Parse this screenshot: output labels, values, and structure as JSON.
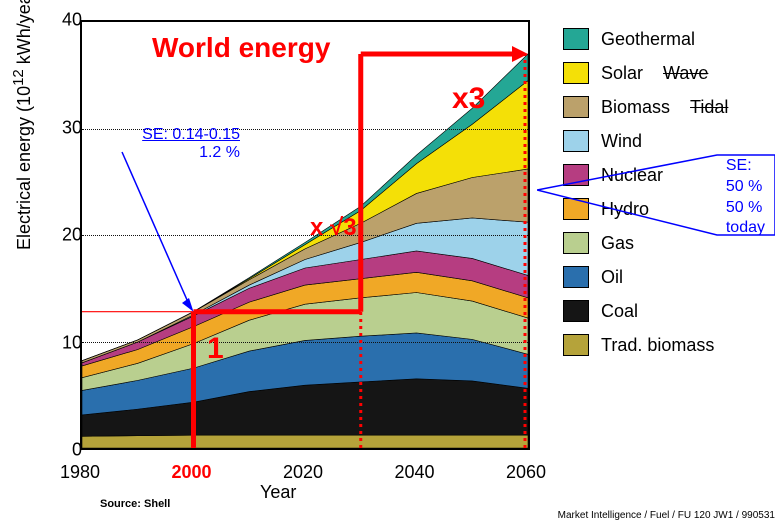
{
  "chart": {
    "type": "stacked-area",
    "title_annotation": "World energy",
    "xlabel": "Year",
    "ylabel": "Electrical energy  (10",
    "ylabel_sup": "12",
    "ylabel_tail": " kWh/year)",
    "xlim": [
      1980,
      2060
    ],
    "ylim": [
      0,
      40
    ],
    "xtick_step": 20,
    "ytick_step": 10,
    "x_highlight": 2000,
    "grid": true,
    "grid_color": "#111111",
    "background_color": "#ffffff",
    "label_fontsize": 18,
    "tick_fontsize": 18,
    "title_fontsize": 28,
    "title_color": "#ff0000",
    "source": "Source: Shell",
    "footer": "Market Intelligence / Fuel / FU 120 JW1 / 990531",
    "x_points": [
      1980,
      1990,
      2000,
      2010,
      2020,
      2030,
      2040,
      2050,
      2060
    ],
    "series": [
      {
        "name": "Trad. biomass",
        "color": "#b5a33a",
        "values": [
          1.1,
          1.15,
          1.2,
          1.2,
          1.2,
          1.2,
          1.2,
          1.2,
          1.2
        ]
      },
      {
        "name": "Coal",
        "color": "#151515",
        "values": [
          2.0,
          2.5,
          3.1,
          4.1,
          4.7,
          5.0,
          5.3,
          5.1,
          4.4
        ]
      },
      {
        "name": "Oil",
        "color": "#2a6fad",
        "values": [
          2.3,
          2.7,
          3.2,
          3.8,
          4.2,
          4.3,
          4.3,
          3.9,
          3.2
        ]
      },
      {
        "name": "Gas",
        "color": "#b9cf8f",
        "values": [
          1.2,
          1.6,
          2.3,
          2.9,
          3.4,
          3.6,
          3.8,
          3.6,
          3.4
        ]
      },
      {
        "name": "Hydro",
        "color": "#f0a826",
        "values": [
          1.1,
          1.3,
          1.6,
          1.7,
          1.8,
          1.8,
          1.9,
          1.9,
          1.9
        ]
      },
      {
        "name": "Nuclear",
        "color": "#b63d81",
        "values": [
          0.3,
          0.7,
          1.0,
          1.3,
          1.6,
          1.8,
          2.0,
          2.1,
          2.1
        ]
      },
      {
        "name": "Wind",
        "color": "#9dd2ea",
        "values": [
          0.0,
          0.0,
          0.1,
          0.3,
          0.8,
          1.6,
          2.6,
          3.8,
          5.0
        ]
      },
      {
        "name": "Biomass",
        "color": "#bba16b",
        "values": [
          0.2,
          0.2,
          0.3,
          0.5,
          1.0,
          1.8,
          2.8,
          3.8,
          5.0
        ]
      },
      {
        "name": "Solar",
        "color": "#f4e007",
        "values": [
          0.0,
          0.0,
          0.0,
          0.1,
          0.4,
          1.2,
          2.8,
          5.0,
          8.3
        ]
      },
      {
        "name": "Geothermal",
        "color": "#24a795",
        "values": [
          0.0,
          0.0,
          0.0,
          0.1,
          0.2,
          0.4,
          0.8,
          1.5,
          2.5
        ]
      }
    ],
    "struck_labels": [
      "Wave",
      "Tidal"
    ]
  },
  "annotations": {
    "se_left_line1": "SE: 0.14-0.15",
    "se_left_line2": "1.2 %",
    "se_right_title": "SE:",
    "se_right_line1": "50 %",
    "se_right_line2": "50 %",
    "se_right_line3": "today",
    "mult1": "1",
    "mult_sqrt3": "x √3",
    "mult3": "x3",
    "se_box_stroke": "#0000ff",
    "red": "#ff0000",
    "blue": "#0000ff",
    "red_line_width": 4,
    "dotted_line_width": 3
  }
}
